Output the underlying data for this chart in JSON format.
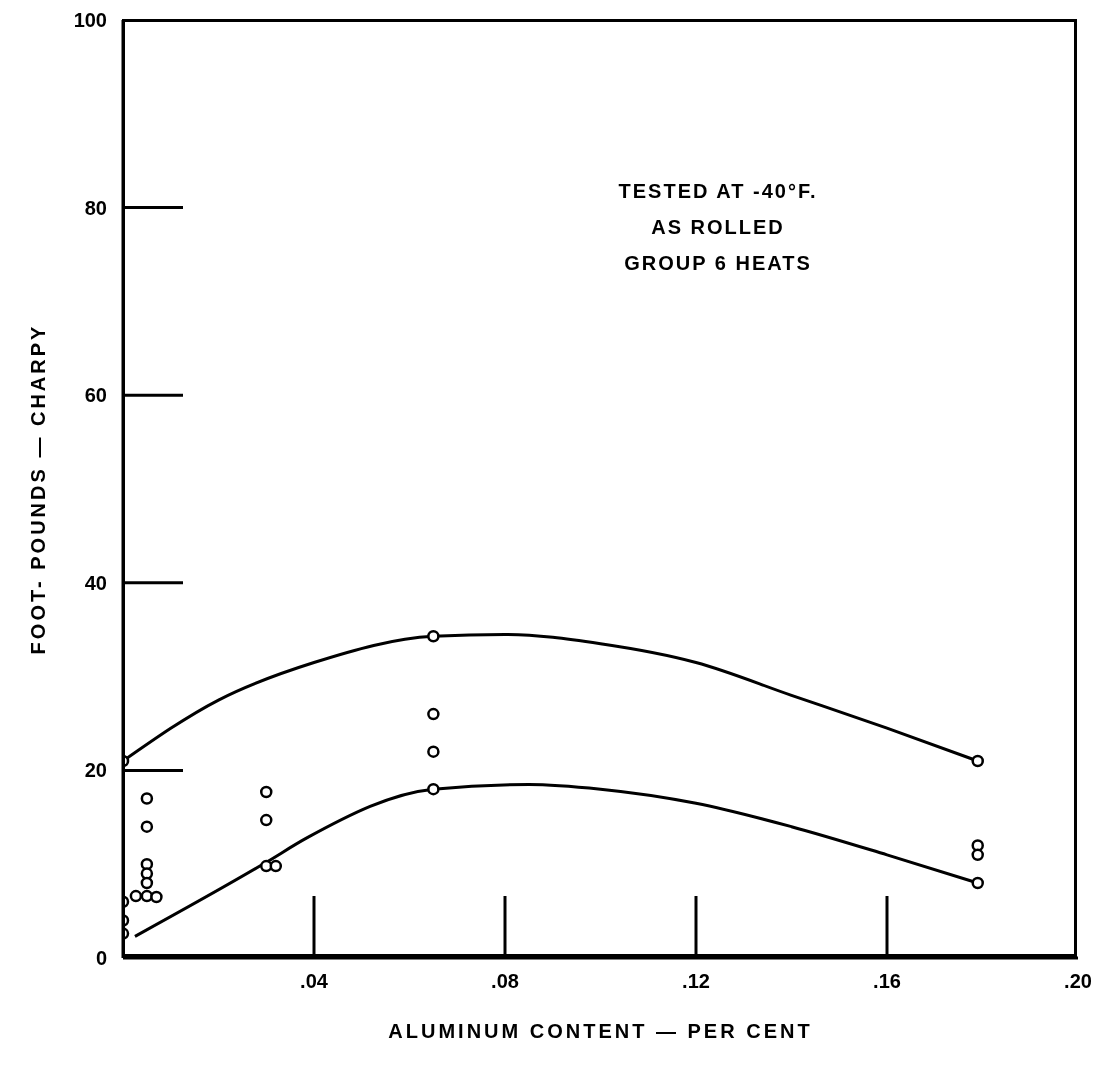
{
  "chart_data": {
    "type": "scatter",
    "xlabel": "ALUMINUM CONTENT — PER CENT",
    "ylabel": "FOOT- POUNDS — CHARPY",
    "annotations": [
      "TESTED AT -40°F.",
      "AS ROLLED",
      "GROUP 6 HEATS"
    ],
    "xlim": [
      0,
      0.2
    ],
    "xticks": [
      {
        "value": 0.04,
        "label": ".04"
      },
      {
        "value": 0.08,
        "label": ".08"
      },
      {
        "value": 0.12,
        "label": ".12"
      },
      {
        "value": 0.16,
        "label": ".16"
      },
      {
        "value": 0.2,
        "label": ".20"
      }
    ],
    "ylim": [
      0,
      100
    ],
    "yticks": [
      0,
      20,
      40,
      60,
      80,
      100
    ],
    "grid": false,
    "legend": false,
    "series": [
      {
        "color": "#000000",
        "marker": "circle",
        "x": [
          0,
          0.005,
          0.005,
          0.005,
          0.005,
          0.005,
          0.0027,
          0.005,
          0.007,
          0,
          0,
          0,
          0.03,
          0.03,
          0.03,
          0.032,
          0.065,
          0.065,
          0.065,
          0.065,
          0.179,
          0.179,
          0.179,
          0.179
        ],
        "values": [
          21,
          17,
          14,
          10,
          9,
          8,
          6.6,
          6.6,
          6.5,
          6,
          4,
          2.6,
          17.7,
          14.7,
          9.8,
          9.8,
          34.3,
          26,
          22,
          18,
          21,
          12,
          11,
          8
        ]
      },
      {
        "type": "line",
        "color": "#000000",
        "marker": "none",
        "line_style": "solid",
        "x": [
          0,
          0.02,
          0.04,
          0.065,
          0.08,
          0.1,
          0.12,
          0.14,
          0.16,
          0.179
        ],
        "values": [
          21,
          27.5,
          31.5,
          34.3,
          34.5,
          33.5,
          31.5,
          28,
          24.5,
          21
        ]
      },
      {
        "type": "line",
        "color": "#000000",
        "marker": "none",
        "line_style": "solid",
        "x": [
          0.0025,
          0.03,
          0.0385,
          0.065,
          0.085,
          0.1,
          0.12,
          0.14,
          0.16,
          0.179
        ],
        "values": [
          2.3,
          10.2,
          12.8,
          18,
          18.5,
          18,
          16.5,
          14,
          11,
          8
        ]
      }
    ]
  }
}
